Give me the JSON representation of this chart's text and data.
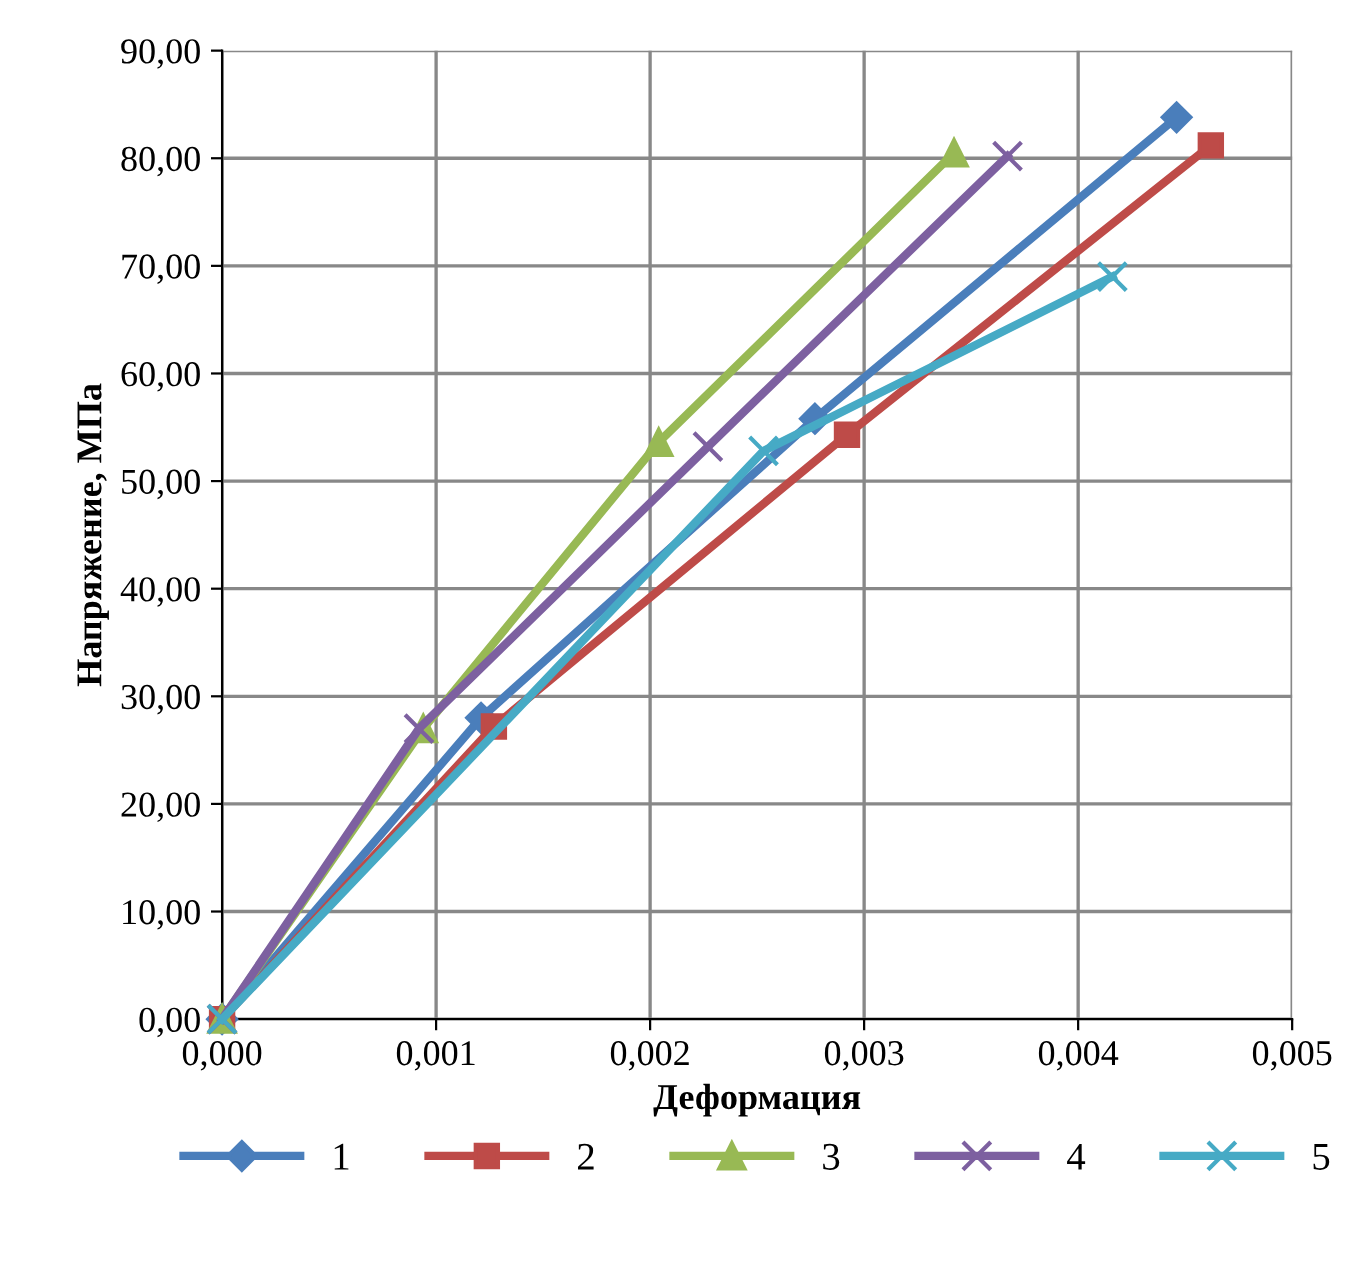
{
  "chart_data": {
    "type": "line",
    "xlabel": "Деформация",
    "ylabel": "Напряжение, МПа",
    "xlim": [
      0,
      0.005
    ],
    "ylim": [
      0,
      90
    ],
    "xticks": [
      {
        "value": 0,
        "label": "0,000"
      },
      {
        "value": 0.001,
        "label": "0,001"
      },
      {
        "value": 0.002,
        "label": "0,002"
      },
      {
        "value": 0.003,
        "label": "0,003"
      },
      {
        "value": 0.004,
        "label": "0,004"
      },
      {
        "value": 0.005,
        "label": "0,005"
      }
    ],
    "yticks": [
      {
        "value": 0,
        "label": "0,00"
      },
      {
        "value": 10,
        "label": "10,00"
      },
      {
        "value": 20,
        "label": "20,00"
      },
      {
        "value": 30,
        "label": "30,00"
      },
      {
        "value": 40,
        "label": "40,00"
      },
      {
        "value": 50,
        "label": "50,00"
      },
      {
        "value": 60,
        "label": "60,00"
      },
      {
        "value": 70,
        "label": "70,00"
      },
      {
        "value": 80,
        "label": "80,00"
      },
      {
        "value": 90,
        "label": "90,00"
      }
    ],
    "grid": true,
    "legend": "bottom",
    "series": [
      {
        "name": "1",
        "color": "#4a7ebb",
        "marker": "diamond",
        "x": [
          0,
          0.00121,
          0.00277,
          0.00446
        ],
        "values": [
          0,
          28,
          55.8,
          83.8
        ]
      },
      {
        "name": "2",
        "color": "#be4b48",
        "marker": "square",
        "x": [
          0,
          0.00127,
          0.00292,
          0.00462
        ],
        "values": [
          0,
          27.2,
          54.3,
          81.2
        ]
      },
      {
        "name": "3",
        "color": "#98b954",
        "marker": "triangle",
        "x": [
          0,
          0.00094,
          0.00204,
          0.00342
        ],
        "values": [
          0,
          27,
          53.6,
          80.5
        ]
      },
      {
        "name": "4",
        "color": "#7d60a0",
        "marker": "cross",
        "x": [
          0,
          0.00092,
          0.00227,
          0.00367
        ],
        "values": [
          0,
          27,
          53.2,
          80.2
        ]
      },
      {
        "name": "5",
        "color": "#46aac5",
        "marker": "cross",
        "x": [
          0,
          0.00253,
          0.00416
        ],
        "values": [
          0,
          52.8,
          69
        ]
      }
    ]
  }
}
